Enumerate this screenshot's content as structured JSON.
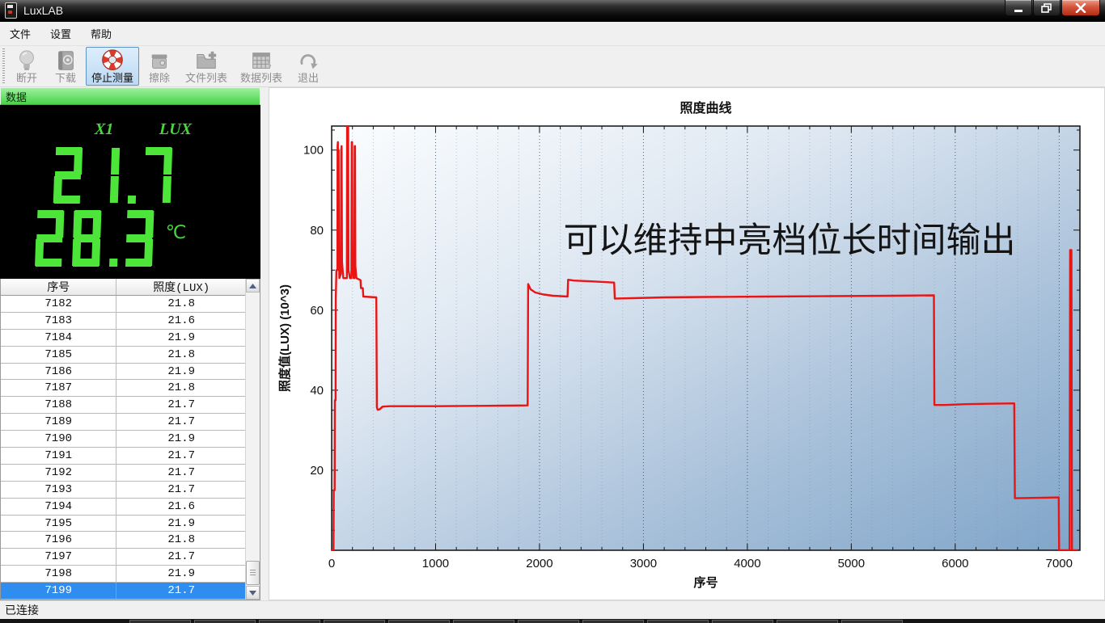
{
  "window": {
    "title": "LuxLAB"
  },
  "menu": {
    "items": [
      "文件",
      "设置",
      "帮助"
    ]
  },
  "toolbar": {
    "buttons": [
      {
        "label": "断开",
        "icon": "bulb-icon",
        "enabled": false,
        "active": false
      },
      {
        "label": "下载",
        "icon": "book-icon",
        "enabled": false,
        "active": false
      },
      {
        "label": "停止测量",
        "icon": "lifebuoy-icon",
        "enabled": true,
        "active": true
      },
      {
        "label": "擦除",
        "icon": "eraser-icon",
        "enabled": false,
        "active": false
      },
      {
        "label": "文件列表",
        "icon": "folder-add-icon",
        "enabled": false,
        "active": false
      },
      {
        "label": "数据列表",
        "icon": "table-icon",
        "enabled": false,
        "active": false
      },
      {
        "label": "退出",
        "icon": "redo-arrow-icon",
        "enabled": false,
        "active": false
      }
    ]
  },
  "data_panel": {
    "header": "数据",
    "led_display": {
      "channel": "X1",
      "unit": "LUX",
      "lux": "21.7",
      "temp": "28.3",
      "temp_unit": "℃"
    },
    "table": {
      "columns": [
        "序号",
        "照度(LUX)"
      ],
      "rows": [
        [
          "7182",
          "21.8"
        ],
        [
          "7183",
          "21.6"
        ],
        [
          "7184",
          "21.9"
        ],
        [
          "7185",
          "21.8"
        ],
        [
          "7186",
          "21.9"
        ],
        [
          "7187",
          "21.8"
        ],
        [
          "7188",
          "21.7"
        ],
        [
          "7189",
          "21.7"
        ],
        [
          "7190",
          "21.9"
        ],
        [
          "7191",
          "21.7"
        ],
        [
          "7192",
          "21.7"
        ],
        [
          "7193",
          "21.7"
        ],
        [
          "7194",
          "21.6"
        ],
        [
          "7195",
          "21.9"
        ],
        [
          "7196",
          "21.8"
        ],
        [
          "7197",
          "21.7"
        ],
        [
          "7198",
          "21.9"
        ],
        [
          "7199",
          "21.7"
        ]
      ],
      "selected_index": 17
    }
  },
  "chart_data": {
    "type": "line",
    "title": "照度曲线",
    "xlabel": "序号",
    "ylabel": "照度值(LUX)  (10^3)",
    "annotation": "可以维持中亮档位长时间输出",
    "xlim": [
      0,
      7200
    ],
    "ylim": [
      0,
      106
    ],
    "xticks": [
      0,
      1000,
      2000,
      3000,
      4000,
      5000,
      6000,
      7000
    ],
    "yticks": [
      20,
      40,
      60,
      80,
      100
    ],
    "minor_x_step": 200,
    "minor_y_step": 5,
    "grid": "vertical-dotted",
    "legend": "none",
    "line_color": "#e91414",
    "series": [
      {
        "name": "照度",
        "points": [
          [
            0,
            0
          ],
          [
            18,
            0
          ],
          [
            20,
            15
          ],
          [
            29,
            15
          ],
          [
            31,
            37.5
          ],
          [
            38,
            37.5
          ],
          [
            40,
            63
          ],
          [
            46,
            70
          ],
          [
            55,
            70
          ],
          [
            57,
            101
          ],
          [
            60,
            102
          ],
          [
            64,
            74
          ],
          [
            67,
            100
          ],
          [
            70,
            74
          ],
          [
            74,
            68
          ],
          [
            88,
            69
          ],
          [
            92,
            100
          ],
          [
            96,
            101
          ],
          [
            100,
            72
          ],
          [
            112,
            68
          ],
          [
            146,
            68
          ],
          [
            149,
            106.5
          ],
          [
            159,
            106.5
          ],
          [
            162,
            70
          ],
          [
            176,
            68
          ],
          [
            190,
            68
          ],
          [
            193,
            102
          ],
          [
            197,
            102
          ],
          [
            201,
            71
          ],
          [
            212,
            68
          ],
          [
            219,
            68
          ],
          [
            221,
            101
          ],
          [
            225,
            101
          ],
          [
            228,
            71
          ],
          [
            238,
            68
          ],
          [
            278,
            67.5
          ],
          [
            282,
            65.5
          ],
          [
            300,
            65.5
          ],
          [
            304,
            63.4
          ],
          [
            430,
            63.2
          ],
          [
            435,
            35.7
          ],
          [
            443,
            35.1
          ],
          [
            460,
            35.2
          ],
          [
            490,
            35.9
          ],
          [
            560,
            36
          ],
          [
            1000,
            36
          ],
          [
            1500,
            36.1
          ],
          [
            1886,
            36.2
          ],
          [
            1891,
            66.5
          ],
          [
            1915,
            65.2
          ],
          [
            1960,
            64.4
          ],
          [
            2040,
            63.9
          ],
          [
            2130,
            63.6
          ],
          [
            2270,
            63.4
          ],
          [
            2275,
            67.6
          ],
          [
            2330,
            67.4
          ],
          [
            2500,
            67.2
          ],
          [
            2718,
            66.9
          ],
          [
            2724,
            62.9
          ],
          [
            2900,
            63
          ],
          [
            3200,
            63.2
          ],
          [
            3600,
            63.3
          ],
          [
            4200,
            63.4
          ],
          [
            4800,
            63.5
          ],
          [
            5400,
            63.6
          ],
          [
            5795,
            63.7
          ],
          [
            5800,
            36.3
          ],
          [
            5900,
            36.3
          ],
          [
            6100,
            36.5
          ],
          [
            6300,
            36.6
          ],
          [
            6568,
            36.7
          ],
          [
            6574,
            13
          ],
          [
            6800,
            13.1
          ],
          [
            6996,
            13.2
          ],
          [
            7000,
            0
          ],
          [
            7100,
            0
          ],
          [
            7106,
            75
          ],
          [
            7118,
            75
          ],
          [
            7124,
            0
          ],
          [
            7170,
            0
          ]
        ]
      }
    ]
  },
  "status_bar": {
    "text": "已连接"
  },
  "taskbar_strip": {
    "button_count": 12
  },
  "colors": {
    "selection_blue": "#2e8def",
    "led_green": "#4de539",
    "line_red": "#e91414",
    "header_green": "#49d449",
    "active_button_border": "#5c93c5"
  }
}
